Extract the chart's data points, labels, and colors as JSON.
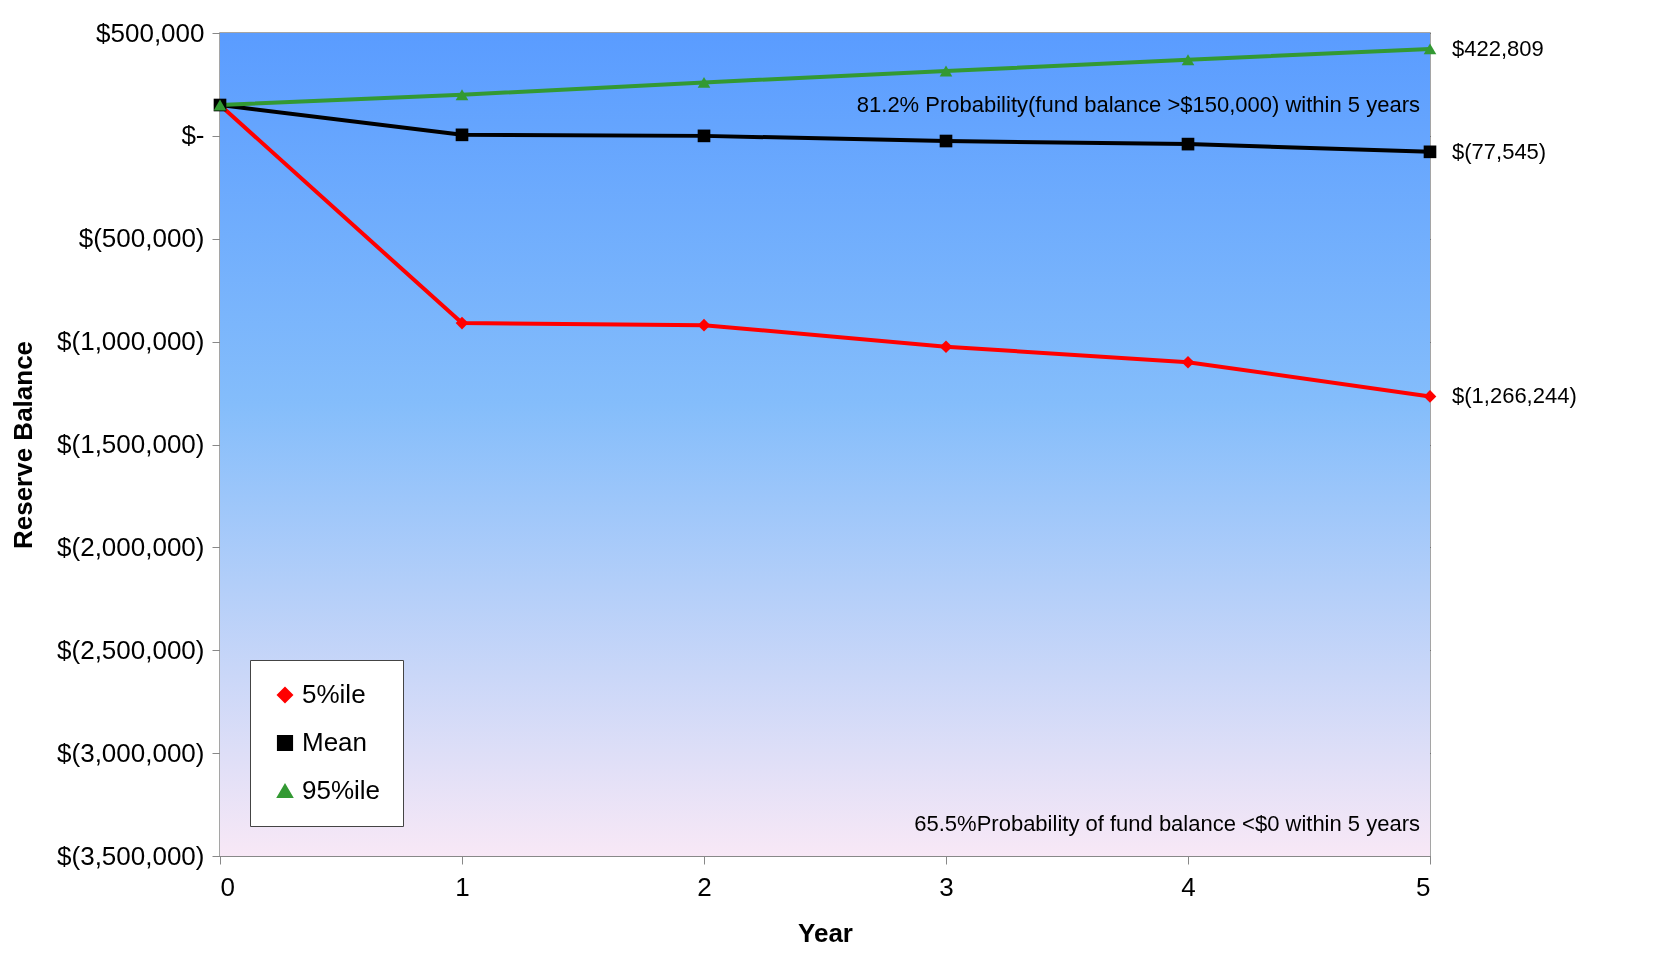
{
  "chart_data": {
    "type": "line",
    "xlabel": "Year",
    "ylabel": "Reserve  Balance",
    "x": [
      0,
      1,
      2,
      3,
      4,
      5
    ],
    "series": [
      {
        "name": "5%ile",
        "color": "#ff0000",
        "marker": "diamond",
        "values": [
          150000,
          -910000,
          -920000,
          -1025000,
          -1100000,
          -1266244
        ],
        "value_labels": [
          null,
          null,
          null,
          null,
          null,
          "$(1,266,244)"
        ]
      },
      {
        "name": "Mean",
        "color": "#000000",
        "marker": "square",
        "values": [
          150000,
          5000,
          0,
          -25000,
          -40000,
          -77545
        ],
        "value_labels": [
          null,
          null,
          null,
          null,
          null,
          "$(77,545)"
        ]
      },
      {
        "name": "95%ile",
        "color": "#339933",
        "marker": "triangle",
        "values": [
          150000,
          200000,
          260000,
          315000,
          370000,
          422809
        ],
        "value_labels": [
          null,
          null,
          null,
          null,
          null,
          "$422,809"
        ]
      }
    ],
    "xlim": [
      0,
      5
    ],
    "xticks": [
      0,
      1,
      2,
      3,
      4,
      5
    ],
    "ylim": [
      -3500000,
      500000
    ],
    "yticks": [
      {
        "value": -3500000,
        "label": "$(3,500,000)"
      },
      {
        "value": -3000000,
        "label": "$(3,000,000)"
      },
      {
        "value": -2500000,
        "label": "$(2,500,000)"
      },
      {
        "value": -2000000,
        "label": "$(2,000,000)"
      },
      {
        "value": -1500000,
        "label": "$(1,500,000)"
      },
      {
        "value": -1000000,
        "label": "$(1,000,000)"
      },
      {
        "value": -500000,
        "label": "$(500,000)"
      },
      {
        "value": 0,
        "label": "$-"
      },
      {
        "value": 500000,
        "label": "$500,000"
      }
    ],
    "annotations": [
      "81.2% Probability(fund balance >$150,000)       within 5 years",
      "65.5%Probability of fund balance <$0    within 5 years"
    ],
    "grid": "y",
    "legend": "bottom left",
    "line_style": "solid"
  }
}
